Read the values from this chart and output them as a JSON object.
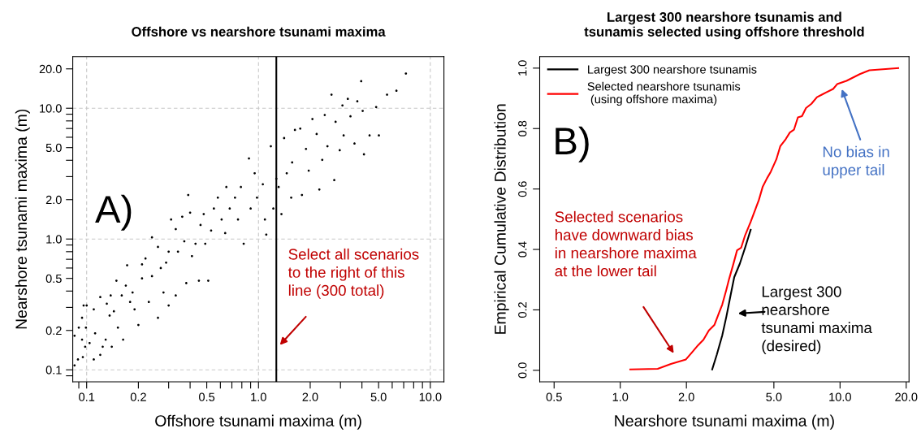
{
  "chart_data": [
    {
      "type": "scatter",
      "title": "Offshore vs nearshore tsunami maxima",
      "xlabel": "Offshore tsunami maxima (m)",
      "ylabel": "Nearshore tsunami maxima (m)",
      "log": "xy",
      "marker": "circle",
      "grid": false,
      "legend": false,
      "xlim": [
        0.083,
        12.0
      ],
      "ylim": [
        0.081,
        24.8
      ],
      "xticks": [
        {
          "value": 0.09,
          "label": null
        },
        {
          "value": 0.1,
          "label": "0.1"
        },
        {
          "value": 0.2,
          "label": "0.2"
        },
        {
          "value": 0.3,
          "label": null
        },
        {
          "value": 0.4,
          "label": null
        },
        {
          "value": 0.5,
          "label": "0.5"
        },
        {
          "value": 0.6,
          "label": null
        },
        {
          "value": 0.7,
          "label": null
        },
        {
          "value": 0.8,
          "label": null
        },
        {
          "value": 0.9,
          "label": null
        },
        {
          "value": 1,
          "label": "1.0"
        },
        {
          "value": 2,
          "label": "2.0"
        },
        {
          "value": 3,
          "label": null
        },
        {
          "value": 4,
          "label": null
        },
        {
          "value": 5,
          "label": "5.0"
        },
        {
          "value": 6,
          "label": null
        },
        {
          "value": 7,
          "label": null
        },
        {
          "value": 8,
          "label": null
        },
        {
          "value": 9,
          "label": null
        },
        {
          "value": 10,
          "label": "10.0"
        }
      ],
      "yticks": [
        {
          "value": 0.09,
          "label": null
        },
        {
          "value": 0.1,
          "label": "0.1"
        },
        {
          "value": 0.2,
          "label": "0.2"
        },
        {
          "value": 0.3,
          "label": null
        },
        {
          "value": 0.4,
          "label": null
        },
        {
          "value": 0.5,
          "label": "0.5"
        },
        {
          "value": 0.6,
          "label": null
        },
        {
          "value": 0.7,
          "label": null
        },
        {
          "value": 0.8,
          "label": null
        },
        {
          "value": 0.9,
          "label": null
        },
        {
          "value": 1,
          "label": "1.0"
        },
        {
          "value": 2,
          "label": "2.0"
        },
        {
          "value": 3,
          "label": null
        },
        {
          "value": 4,
          "label": null
        },
        {
          "value": 5,
          "label": "5.0"
        },
        {
          "value": 6,
          "label": null
        },
        {
          "value": 7,
          "label": null
        },
        {
          "value": 8,
          "label": null
        },
        {
          "value": 9,
          "label": null
        },
        {
          "value": 10,
          "label": "10.0"
        },
        {
          "value": 20,
          "label": "20.0"
        }
      ],
      "ref_lines": [
        {
          "axis": "x",
          "value": 0.1,
          "color": "#c8c8c8",
          "line_style": "dashed"
        },
        {
          "axis": "x",
          "value": 1,
          "color": "#c8c8c8",
          "line_style": "dashed"
        },
        {
          "axis": "x",
          "value": 10,
          "color": "#c8c8c8",
          "line_style": "dashed"
        },
        {
          "axis": "y",
          "value": 0.1,
          "color": "#c8c8c8",
          "line_style": "dashed"
        },
        {
          "axis": "y",
          "value": 1,
          "color": "#c8c8c8",
          "line_style": "dashed"
        },
        {
          "axis": "y",
          "value": 10,
          "color": "#c8c8c8",
          "line_style": "dashed"
        },
        {
          "axis": "x",
          "value": 1.27,
          "color": "#000000",
          "line_style": "solid"
        }
      ],
      "annotations": [
        "A)",
        "Select all scenarios\nto the right of this\nline (300 total)"
      ],
      "series": [
        {
          "color": "#000000",
          "x": [
            0.085,
            0.085,
            0.089,
            0.095,
            0.096,
            0.1,
            0.094,
            0.099,
            0.09,
            0.094,
            0.098,
            0.104,
            0.11,
            0.11,
            0.112,
            0.12,
            0.12,
            0.124,
            0.129,
            0.131,
            0.136,
            0.138,
            0.14,
            0.144,
            0.149,
            0.152,
            0.16,
            0.163,
            0.169,
            0.172,
            0.179,
            0.185,
            0.19,
            0.2,
            0.21,
            0.21,
            0.22,
            0.23,
            0.24,
            0.24,
            0.26,
            0.26,
            0.27,
            0.28,
            0.29,
            0.3,
            0.3,
            0.31,
            0.33,
            0.33,
            0.34,
            0.36,
            0.37,
            0.38,
            0.39,
            0.4,
            0.41,
            0.43,
            0.45,
            0.46,
            0.48,
            0.49,
            0.51,
            0.53,
            0.55,
            0.58,
            0.61,
            0.64,
            0.65,
            0.68,
            0.73,
            0.76,
            0.79,
            0.82,
            0.88,
            0.9,
            0.95,
            0.98,
            1.06,
            1.09,
            1.11,
            1.18,
            1.22,
            1.27,
            1.31,
            1.36,
            1.41,
            1.46,
            1.55,
            1.57,
            1.63,
            1.75,
            1.79,
            1.89,
            1.96,
            2.06,
            2.18,
            2.26,
            2.35,
            2.43,
            2.52,
            2.66,
            2.76,
            2.81,
            2.97,
            3.08,
            3.13,
            3.31,
            3.43,
            3.62,
            3.76,
            3.96,
            4.11,
            4.04,
            4.43,
            4.84,
            5.02,
            5.6,
            6.35,
            7.21
          ],
          "values": [
            0.182,
            0.108,
            0.12,
            0.125,
            0.31,
            0.31,
            0.25,
            0.21,
            0.21,
            0.17,
            0.15,
            0.16,
            0.12,
            0.29,
            0.19,
            0.13,
            0.36,
            0.15,
            0.17,
            0.32,
            0.26,
            0.37,
            0.15,
            0.28,
            0.48,
            0.21,
            0.37,
            0.17,
            0.44,
            0.63,
            0.33,
            0.39,
            0.29,
            0.22,
            0.64,
            0.5,
            0.71,
            0.33,
            1.03,
            0.52,
            0.87,
            0.25,
            0.6,
            0.39,
            0.66,
            0.31,
            0.8,
            1.41,
            1.19,
            0.37,
            0.8,
            1.48,
            0.96,
            0.46,
            2.17,
            1.59,
            0.74,
            0.92,
            0.48,
            1.28,
            1.55,
            0.92,
            0.48,
            1.16,
            1.71,
            2.07,
            1.41,
            1.11,
            2.5,
            1.71,
            2.07,
            1.41,
            2.5,
            0.92,
            4.13,
            1.71,
            3.18,
            2.07,
            2.62,
            1.41,
            1.08,
            5.12,
            1.71,
            2.89,
            2.5,
            1.55,
            5.91,
            3.18,
            2.07,
            3.85,
            6.82,
            6.99,
            2.17,
            4.88,
            3.33,
            8.26,
            6.35,
            2.39,
            4.03,
            8.87,
            5.12,
            12.7,
            2.82,
            7.87,
            4.77,
            10.5,
            6.2,
            11.8,
            8.67,
            5.37,
            11.3,
            16.1,
            4.44,
            9.53,
            6.2,
            10.2,
            6.2,
            12.7,
            13.6,
            18.4
          ]
        }
      ]
    },
    {
      "type": "line",
      "title": "Largest 300 nearshore tsunamis and\ntsunamis selected using offshore threshold",
      "xlabel": "Nearshore tsunami maxima (m)",
      "ylabel": "Empirical Cumulative Distribution",
      "log": "x",
      "marker": "none",
      "line_style": "solid",
      "grid": false,
      "legend": "top left",
      "xlim": [
        0.43,
        20.6
      ],
      "ylim": [
        -0.038,
        1.038
      ],
      "xticks": [
        0.5,
        {
          "value": 1,
          "label": "1.0"
        },
        {
          "value": 2,
          "label": "2.0"
        },
        {
          "value": 5,
          "label": "5.0"
        },
        {
          "value": 10,
          "label": "10.0"
        },
        {
          "value": 20,
          "label": "20.0"
        }
      ],
      "yticks": [
        {
          "value": 0,
          "label": "0.0"
        },
        0.2,
        0.4,
        0.6,
        0.8,
        {
          "value": 1,
          "label": "1.0"
        }
      ],
      "annotations": [
        "B)",
        "Selected scenarios\nhave downward bias\nin nearshore maxima\nat the lower tail",
        "No bias in\nupper tail",
        "Largest 300\nnearshore\ntsunami maxima\n(desired)"
      ],
      "series": [
        {
          "name": "Largest 300 nearshore tsunamis",
          "color": "#000000",
          "x": [
            2.62,
            2.75,
            2.91,
            3.04,
            3.17,
            3.3,
            3.5,
            3.7,
            3.92
          ],
          "values": [
            0.003,
            0.052,
            0.115,
            0.178,
            0.245,
            0.308,
            0.353,
            0.406,
            0.465
          ]
        },
        {
          "name": "Selected nearshore tsunamis\n (using offshore maxima)",
          "color": "#ff0000",
          "x": [
            1.11,
            1.48,
            1.7,
            1.99,
            2.13,
            2.26,
            2.39,
            2.53,
            2.68,
            2.83,
            2.91,
            3.04,
            3.13,
            3.26,
            3.4,
            3.55,
            3.7,
            3.92,
            4.09,
            4.27,
            4.45,
            4.65,
            4.84,
            5.13,
            5.35,
            5.66,
            5.91,
            6.17,
            6.43,
            6.71,
            7.0,
            7.41,
            7.85,
            8.3,
            9.3,
            9.7,
            10.7,
            12.3,
            13.6,
            18.4
          ],
          "values": [
            0.003,
            0.005,
            0.021,
            0.036,
            0.061,
            0.083,
            0.101,
            0.132,
            0.15,
            0.195,
            0.217,
            0.267,
            0.303,
            0.348,
            0.397,
            0.406,
            0.447,
            0.491,
            0.527,
            0.563,
            0.608,
            0.635,
            0.657,
            0.698,
            0.742,
            0.765,
            0.787,
            0.796,
            0.837,
            0.841,
            0.868,
            0.882,
            0.904,
            0.913,
            0.931,
            0.947,
            0.958,
            0.98,
            0.993,
            1.0
          ]
        }
      ]
    }
  ]
}
